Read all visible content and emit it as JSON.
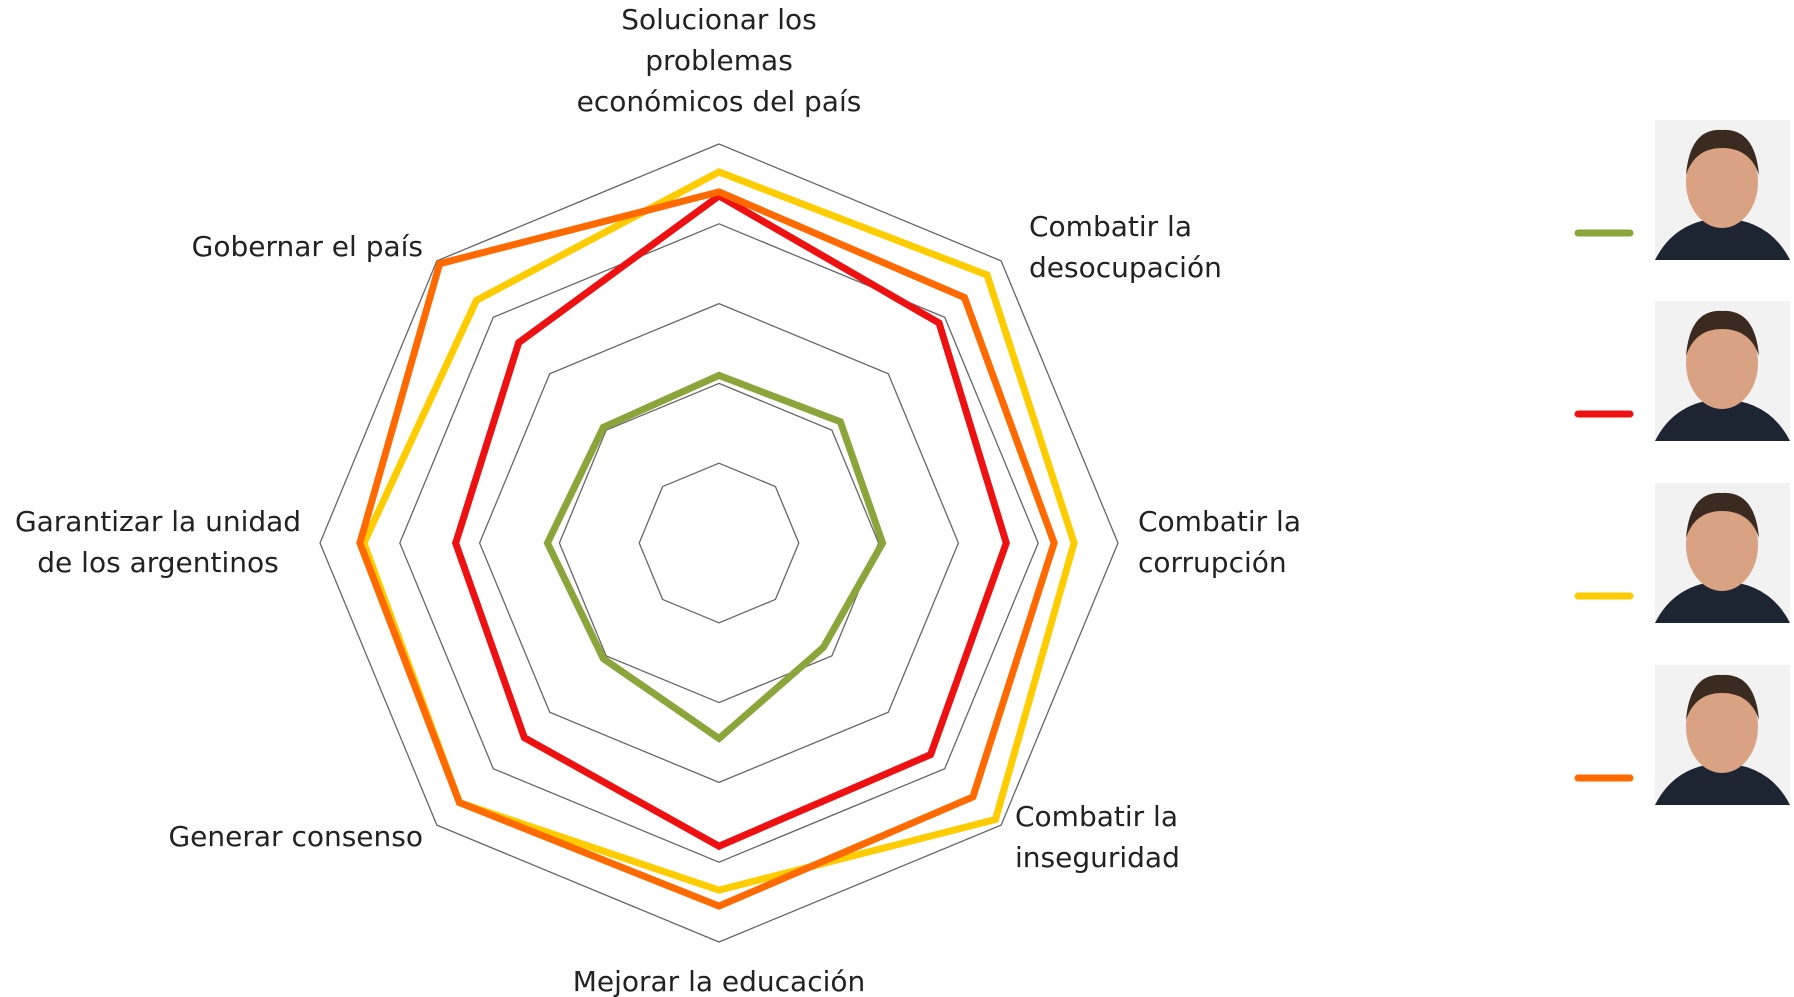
{
  "chart_data": {
    "type": "radar",
    "categories": [
      [
        "Solucionar los",
        "problemas",
        "económicos del país"
      ],
      [
        "Combatir la",
        "desocupación"
      ],
      [
        "Combatir la",
        "corrupción"
      ],
      [
        "Combatir la",
        "inseguridad"
      ],
      [
        "Mejorar la educación"
      ],
      [
        "Generar consenso"
      ],
      [
        "Garantizar la unidad",
        "de los argentinos"
      ],
      [
        "Gobernar el país"
      ]
    ],
    "ylim": [
      0,
      5
    ],
    "yticks": [
      1,
      2,
      3,
      4,
      5
    ],
    "series": [
      {
        "color": "#8aa63a",
        "values": [
          2.1,
          2.15,
          2.05,
          1.85,
          2.45,
          2.05,
          2.15,
          2.05
        ]
      },
      {
        "color": "#ee1111",
        "values": [
          4.35,
          3.9,
          3.6,
          3.75,
          3.8,
          3.45,
          3.3,
          3.55
        ]
      },
      {
        "color": "#ffcc00",
        "values": [
          4.65,
          4.75,
          4.45,
          4.9,
          4.35,
          4.6,
          4.45,
          4.3
        ]
      },
      {
        "color": "#ff6a00",
        "values": [
          4.4,
          4.35,
          4.2,
          4.5,
          4.55,
          4.6,
          4.5,
          4.95
        ]
      }
    ]
  }
}
